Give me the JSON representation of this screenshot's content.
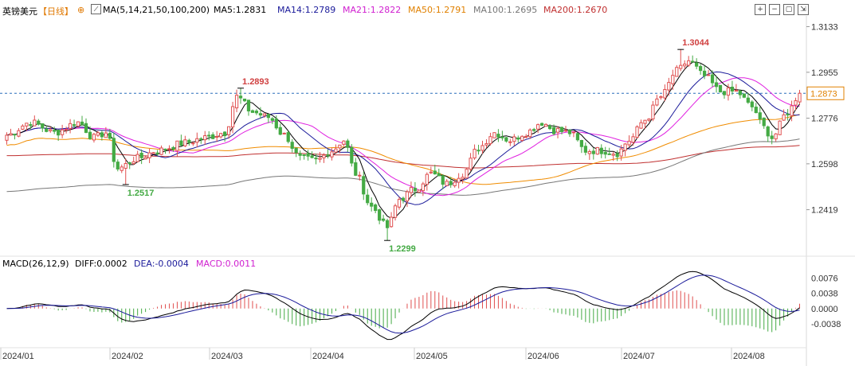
{
  "header": {
    "symbol": "英镑美元",
    "period": "【日线】",
    "ma_params": "MA(5,14,21,50,100,200)",
    "ma5": "MA5:1.2831",
    "ma14": "MA14:1.2789",
    "ma21": "MA21:1.2822",
    "ma50": "MA50:1.2791",
    "ma100": "MA100:1.2695",
    "ma200": "MA200:1.2670"
  },
  "toolbar": [
    "zoom-in-icon",
    "zoom-out-icon",
    "expand-icon",
    "settings-icon"
  ],
  "macd_header": {
    "params": "MACD(26,12,9)",
    "diff": "DIFF:0.0002",
    "dea": "DEA:-0.0004",
    "macd": "MACD:0.0011"
  },
  "colors": {
    "up": "#e05050",
    "down": "#44aa44",
    "ma5": "#000000",
    "ma14": "#1a1a9a",
    "ma21": "#e020e0",
    "ma50": "#f08c00",
    "ma100": "#777777",
    "ma200": "#c03030"
  },
  "chart_data": {
    "type": "candlestick",
    "price_axis": {
      "ticks": [
        "1.3133",
        "1.2955",
        "1.2776",
        "1.2598",
        "1.2419"
      ],
      "range": [
        1.225,
        1.315
      ]
    },
    "current_price": "1.2873",
    "x_axis_labels": [
      "2024/01",
      "2024/02",
      "2024/03",
      "2024/04",
      "2024/05",
      "2024/06",
      "2024/07",
      "2024/08"
    ],
    "annotations": [
      {
        "text": "1.2893",
        "kind": "high"
      },
      {
        "text": "1.3044",
        "kind": "high"
      },
      {
        "text": "1.2517",
        "kind": "low"
      },
      {
        "text": "1.2299",
        "kind": "low"
      }
    ],
    "anchors": [
      [
        0,
        1.271
      ],
      [
        6,
        1.276
      ],
      [
        12,
        1.272
      ],
      [
        18,
        1.276
      ],
      [
        22,
        1.27
      ],
      [
        25,
        1.272
      ],
      [
        28,
        1.258
      ],
      [
        33,
        1.262
      ],
      [
        38,
        1.265
      ],
      [
        45,
        1.268
      ],
      [
        50,
        1.27
      ],
      [
        55,
        1.272
      ],
      [
        58,
        1.286
      ],
      [
        62,
        1.28
      ],
      [
        66,
        1.278
      ],
      [
        70,
        1.271
      ],
      [
        74,
        1.262
      ],
      [
        78,
        1.261
      ],
      [
        82,
        1.265
      ],
      [
        85,
        1.269
      ],
      [
        88,
        1.256
      ],
      [
        92,
        1.243
      ],
      [
        96,
        1.235
      ],
      [
        99,
        1.246
      ],
      [
        103,
        1.25
      ],
      [
        107,
        1.256
      ],
      [
        111,
        1.252
      ],
      [
        115,
        1.256
      ],
      [
        119,
        1.266
      ],
      [
        123,
        1.272
      ],
      [
        127,
        1.269
      ],
      [
        131,
        1.272
      ],
      [
        135,
        1.276
      ],
      [
        138,
        1.273
      ],
      [
        142,
        1.272
      ],
      [
        146,
        1.265
      ],
      [
        150,
        1.265
      ],
      [
        154,
        1.264
      ],
      [
        157,
        1.269
      ],
      [
        161,
        1.277
      ],
      [
        165,
        1.286
      ],
      [
        169,
        1.296
      ],
      [
        172,
        1.3
      ],
      [
        176,
        1.294
      ],
      [
        180,
        1.288
      ],
      [
        184,
        1.288
      ],
      [
        188,
        1.282
      ],
      [
        191,
        1.274
      ],
      [
        193,
        1.27
      ],
      [
        197,
        1.28
      ],
      [
        200,
        1.2873
      ]
    ],
    "special_bars": [
      {
        "index": 30,
        "low": 1.2517
      },
      {
        "index": 59,
        "high": 1.2893
      },
      {
        "index": 96,
        "low": 1.2299
      },
      {
        "index": 170,
        "high": 1.3044
      }
    ],
    "ma_end_values": {
      "ma5": 1.2831,
      "ma14": 1.2789,
      "ma21": 1.2822,
      "ma50": 1.2791,
      "ma100": 1.2695,
      "ma200": 1.267
    },
    "macd_axis": {
      "ticks": [
        "0.0076",
        "0.0038",
        "0.0000",
        "-0.0038"
      ],
      "range": [
        -0.008,
        0.0085
      ]
    },
    "macd_end": {
      "diff": 0.0002,
      "dea": -0.0004,
      "macd": 0.0011
    }
  }
}
